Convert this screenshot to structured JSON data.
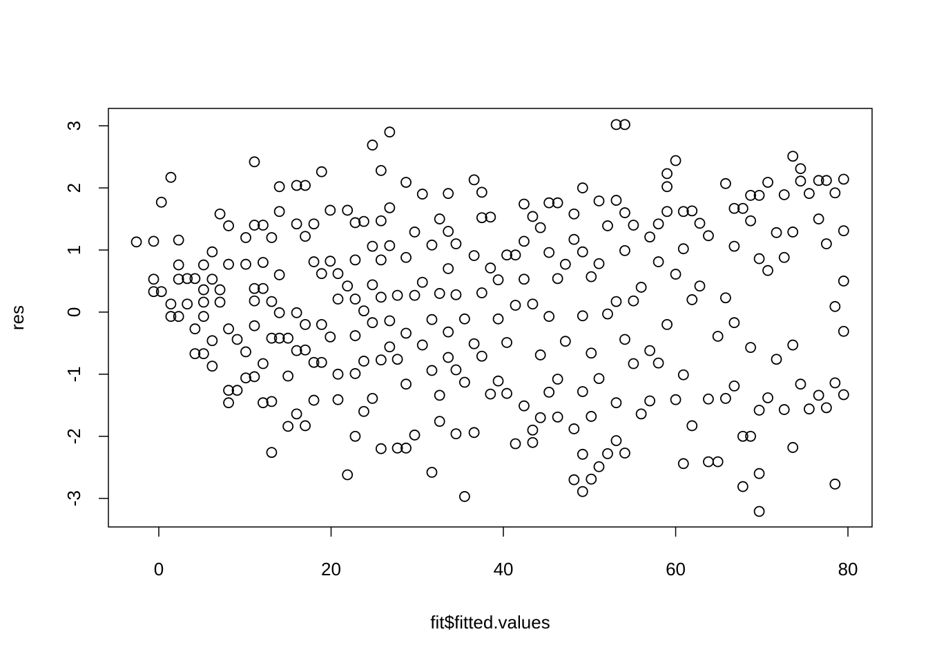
{
  "chart_data": {
    "type": "scatter",
    "x_label": "fit$fitted.values",
    "y_label": "res",
    "color": "#000000",
    "xlim": [
      -5.85,
      82.8
    ],
    "ylim": [
      -3.46,
      3.28
    ],
    "xticks": [
      0,
      20,
      40,
      60,
      80
    ],
    "yticks": [
      -3,
      -2,
      -1,
      0,
      1,
      2,
      3
    ],
    "x": [
      -2.6,
      -0.6,
      -0.6,
      -0.6,
      0.3,
      0.3,
      1.4,
      1.4,
      1.4,
      2.3,
      2.3,
      2.3,
      2.3,
      3.3,
      3.3,
      4.2,
      4.2,
      4.2,
      5.2,
      5.2,
      5.2,
      5.2,
      5.2,
      6.2,
      6.2,
      6.2,
      6.2,
      7.1,
      7.1,
      7.1,
      8.1,
      8.1,
      8.1,
      8.1,
      8.1,
      9.1,
      9.1,
      10.1,
      10.1,
      10.1,
      10.1,
      11.1,
      11.1,
      11.1,
      11.1,
      11.1,
      11.1,
      12.1,
      12.1,
      12.1,
      12.1,
      12.1,
      13.1,
      13.1,
      13.1,
      13.1,
      13.1,
      14,
      14,
      14,
      14,
      14,
      15,
      15,
      15,
      16,
      16,
      16,
      16,
      16,
      17,
      17,
      17,
      17,
      17,
      18,
      18,
      18,
      18,
      18.9,
      18.9,
      18.9,
      18.9,
      19.9,
      19.9,
      19.9,
      20.8,
      20.8,
      20.8,
      20.8,
      21.9,
      21.9,
      21.9,
      22.8,
      22.8,
      22.8,
      22.8,
      22.8,
      22.8,
      23.8,
      23.8,
      23.8,
      23.8,
      24.8,
      24.8,
      24.8,
      24.8,
      24.8,
      25.8,
      25.8,
      25.8,
      25.8,
      25.8,
      25.8,
      26.8,
      26.8,
      26.8,
      26.8,
      26.8,
      27.7,
      27.7,
      27.7,
      28.7,
      28.7,
      28.7,
      28.7,
      28.7,
      29.7,
      29.7,
      29.7,
      30.6,
      30.6,
      30.6,
      31.7,
      31.7,
      31.7,
      31.7,
      32.6,
      32.6,
      32.6,
      32.6,
      33.6,
      33.6,
      33.6,
      33.6,
      33.6,
      34.5,
      34.5,
      34.5,
      34.5,
      35.5,
      35.5,
      35.5,
      36.6,
      36.6,
      36.6,
      36.6,
      37.5,
      37.5,
      37.5,
      37.5,
      38.5,
      38.5,
      38.5,
      39.4,
      39.4,
      39.4,
      40.4,
      40.4,
      40.4,
      41.4,
      41.4,
      41.4,
      42.4,
      42.4,
      42.4,
      42.4,
      43.4,
      43.4,
      43.4,
      43.4,
      44.3,
      44.3,
      44.3,
      45.3,
      45.3,
      45.3,
      45.3,
      46.3,
      46.3,
      46.3,
      46.3,
      47.2,
      47.2,
      48.2,
      48.2,
      48.2,
      48.2,
      49.2,
      49.2,
      49.2,
      49.2,
      49.2,
      49.2,
      50.2,
      50.2,
      50.2,
      50.2,
      51.1,
      51.1,
      51.1,
      51.1,
      52.1,
      52.1,
      52.1,
      53.1,
      53.1,
      53.1,
      53.1,
      53.1,
      54.1,
      54.1,
      54.1,
      54.1,
      54.1,
      55.1,
      55.1,
      55.1,
      56,
      56,
      57,
      57,
      57,
      58,
      58,
      58,
      59,
      59,
      59,
      59,
      60,
      60,
      60,
      60.9,
      60.9,
      60.9,
      60.9,
      61.9,
      61.9,
      61.9,
      62.8,
      62.8,
      63.8,
      63.8,
      63.8,
      64.9,
      64.9,
      65.8,
      65.8,
      65.8,
      66.8,
      66.8,
      66.8,
      66.8,
      67.8,
      67.8,
      67.8,
      68.7,
      68.7,
      68.7,
      68.7,
      69.7,
      69.7,
      69.7,
      69.7,
      69.7,
      70.7,
      70.7,
      70.7,
      71.7,
      71.7,
      72.6,
      72.6,
      72.6,
      73.6,
      73.6,
      73.6,
      73.6,
      74.5,
      74.5,
      74.5,
      75.5,
      75.5,
      76.6,
      76.6,
      76.6,
      77.5,
      77.5,
      77.5,
      78.5,
      78.5,
      78.5,
      78.5,
      79.5,
      79.5,
      79.5,
      79.5,
      79.5
    ],
    "y": [
      1.13,
      1.14,
      0.53,
      0.33,
      0.33,
      1.77,
      2.17,
      0.13,
      -0.07,
      1.16,
      0.76,
      0.53,
      -0.07,
      0.54,
      0.13,
      0.54,
      -0.27,
      -0.67,
      0.76,
      0.36,
      0.16,
      -0.07,
      -0.67,
      0.97,
      0.53,
      -0.46,
      -0.87,
      1.58,
      0.36,
      0.16,
      1.39,
      0.77,
      -0.27,
      -1.26,
      -1.46,
      -0.44,
      -1.26,
      1.2,
      0.77,
      -0.64,
      -1.06,
      2.42,
      1.4,
      0.38,
      0.18,
      -0.22,
      -1.04,
      1.4,
      0.8,
      0.38,
      -0.83,
      -1.46,
      1.2,
      0.17,
      -0.42,
      -1.44,
      -2.26,
      2.02,
      1.62,
      0.6,
      -0.01,
      -0.42,
      -0.42,
      -1.03,
      -1.84,
      2.04,
      1.42,
      -0.01,
      -0.62,
      -1.64,
      2.04,
      1.22,
      -0.2,
      -0.61,
      -1.83,
      1.42,
      0.81,
      -0.81,
      -1.42,
      2.26,
      0.62,
      -0.2,
      -0.81,
      1.64,
      0.82,
      -0.4,
      0.62,
      0.21,
      -1.0,
      -1.41,
      1.64,
      -2.62,
      0.42,
      1.44,
      0.84,
      0.21,
      -0.38,
      -0.99,
      -2.0,
      1.46,
      0.02,
      -0.79,
      -1.6,
      2.69,
      1.06,
      0.44,
      -0.17,
      -1.39,
      2.28,
      1.47,
      0.84,
      0.24,
      -0.77,
      -2.2,
      2.9,
      1.68,
      1.07,
      -0.14,
      -0.56,
      0.27,
      -0.76,
      -2.19,
      2.09,
      0.88,
      -0.34,
      -1.16,
      -2.19,
      1.29,
      0.27,
      -1.98,
      1.9,
      0.48,
      -0.53,
      1.08,
      -0.12,
      -0.94,
      -2.58,
      1.5,
      0.3,
      -1.34,
      -1.76,
      1.91,
      1.3,
      0.7,
      -0.32,
      -0.73,
      1.1,
      0.28,
      -0.93,
      -1.96,
      -2.97,
      -0.11,
      -1.13,
      2.13,
      0.91,
      -0.51,
      -1.94,
      1.93,
      1.52,
      0.31,
      -0.71,
      1.53,
      0.71,
      -1.32,
      0.52,
      -0.11,
      -1.11,
      0.92,
      -0.49,
      -1.31,
      0.92,
      0.11,
      -2.12,
      1.74,
      1.14,
      0.53,
      -1.51,
      1.54,
      0.13,
      -1.9,
      -2.1,
      1.36,
      -0.69,
      -1.7,
      1.76,
      0.96,
      -0.07,
      -1.29,
      1.76,
      0.54,
      -1.08,
      -1.69,
      0.77,
      -0.47,
      1.58,
      1.17,
      -1.88,
      -2.7,
      2.0,
      0.97,
      -0.06,
      -1.28,
      -2.29,
      -2.89,
      0.57,
      -0.66,
      -1.68,
      -2.69,
      1.79,
      0.78,
      -1.07,
      -2.49,
      1.39,
      -0.03,
      -2.28,
      3.02,
      1.8,
      0.17,
      -1.46,
      -2.07,
      3.02,
      1.6,
      0.99,
      -0.44,
      -2.27,
      1.4,
      0.18,
      -0.83,
      -1.64,
      0.4,
      1.21,
      -0.62,
      -1.43,
      1.42,
      0.81,
      -0.82,
      2.23,
      2.02,
      1.62,
      -0.2,
      2.44,
      0.61,
      -1.41,
      1.62,
      1.02,
      -2.44,
      -1.01,
      1.63,
      -1.83,
      0.2,
      1.43,
      0.42,
      1.23,
      -2.41,
      -1.4,
      -0.39,
      -2.41,
      2.07,
      0.23,
      -1.39,
      1.67,
      1.06,
      -0.17,
      -1.19,
      1.67,
      -2.81,
      -2.0,
      1.88,
      1.47,
      -2.0,
      -0.57,
      1.88,
      -3.21,
      -2.6,
      -1.58,
      0.86,
      2.09,
      0.67,
      -1.38,
      1.28,
      -0.76,
      1.89,
      -1.57,
      0.88,
      2.51,
      -2.18,
      1.29,
      -0.53,
      2.31,
      2.11,
      -1.16,
      1.91,
      -1.56,
      2.12,
      1.5,
      -1.34,
      2.12,
      -1.54,
      1.1,
      1.92,
      -2.77,
      -1.14,
      0.09,
      2.14,
      1.31,
      0.5,
      -0.31,
      -1.33
    ]
  }
}
